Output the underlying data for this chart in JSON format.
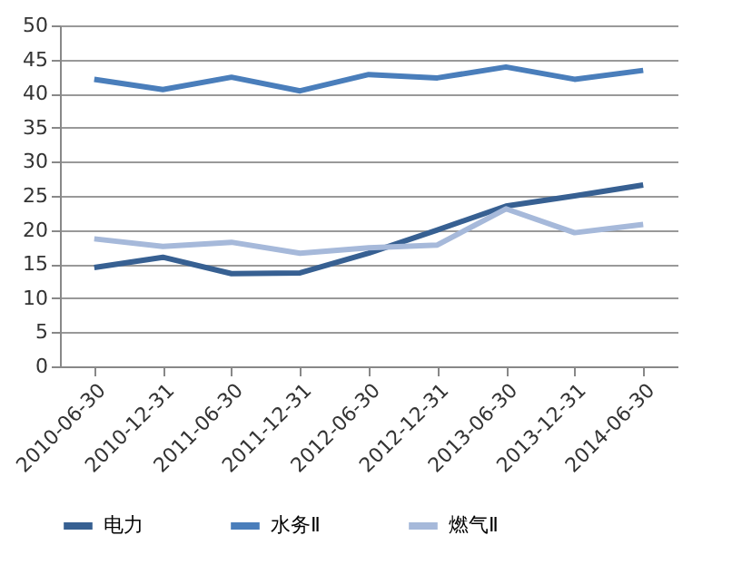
{
  "chart_data": {
    "type": "line",
    "categories": [
      "2010-06-30",
      "2010-12-31",
      "2011-06-30",
      "2011-12-31",
      "2012-06-30",
      "2012-12-31",
      "2013-06-30",
      "2013-12-31",
      "2014-06-30"
    ],
    "series": [
      {
        "name": "电力",
        "color": "#376092",
        "values": [
          14.5,
          16.0,
          13.6,
          13.7,
          16.6,
          20.0,
          23.5,
          25.0,
          26.6
        ]
      },
      {
        "name": "水务Ⅱ",
        "color": "#4a7ebb",
        "values": [
          42.1,
          40.6,
          42.4,
          40.4,
          42.8,
          42.3,
          43.9,
          42.1,
          43.4
        ]
      },
      {
        "name": "燃气Ⅱ",
        "color": "#a6b9da",
        "values": [
          18.7,
          17.6,
          18.2,
          16.6,
          17.4,
          17.8,
          23.1,
          19.6,
          20.8
        ]
      }
    ],
    "ylim": [
      0,
      50
    ],
    "yticks": [
      0,
      5,
      10,
      15,
      20,
      25,
      30,
      35,
      40,
      45,
      50
    ],
    "grid": "y",
    "legend": "bottom",
    "marker": "none",
    "line_style": "solid"
  }
}
